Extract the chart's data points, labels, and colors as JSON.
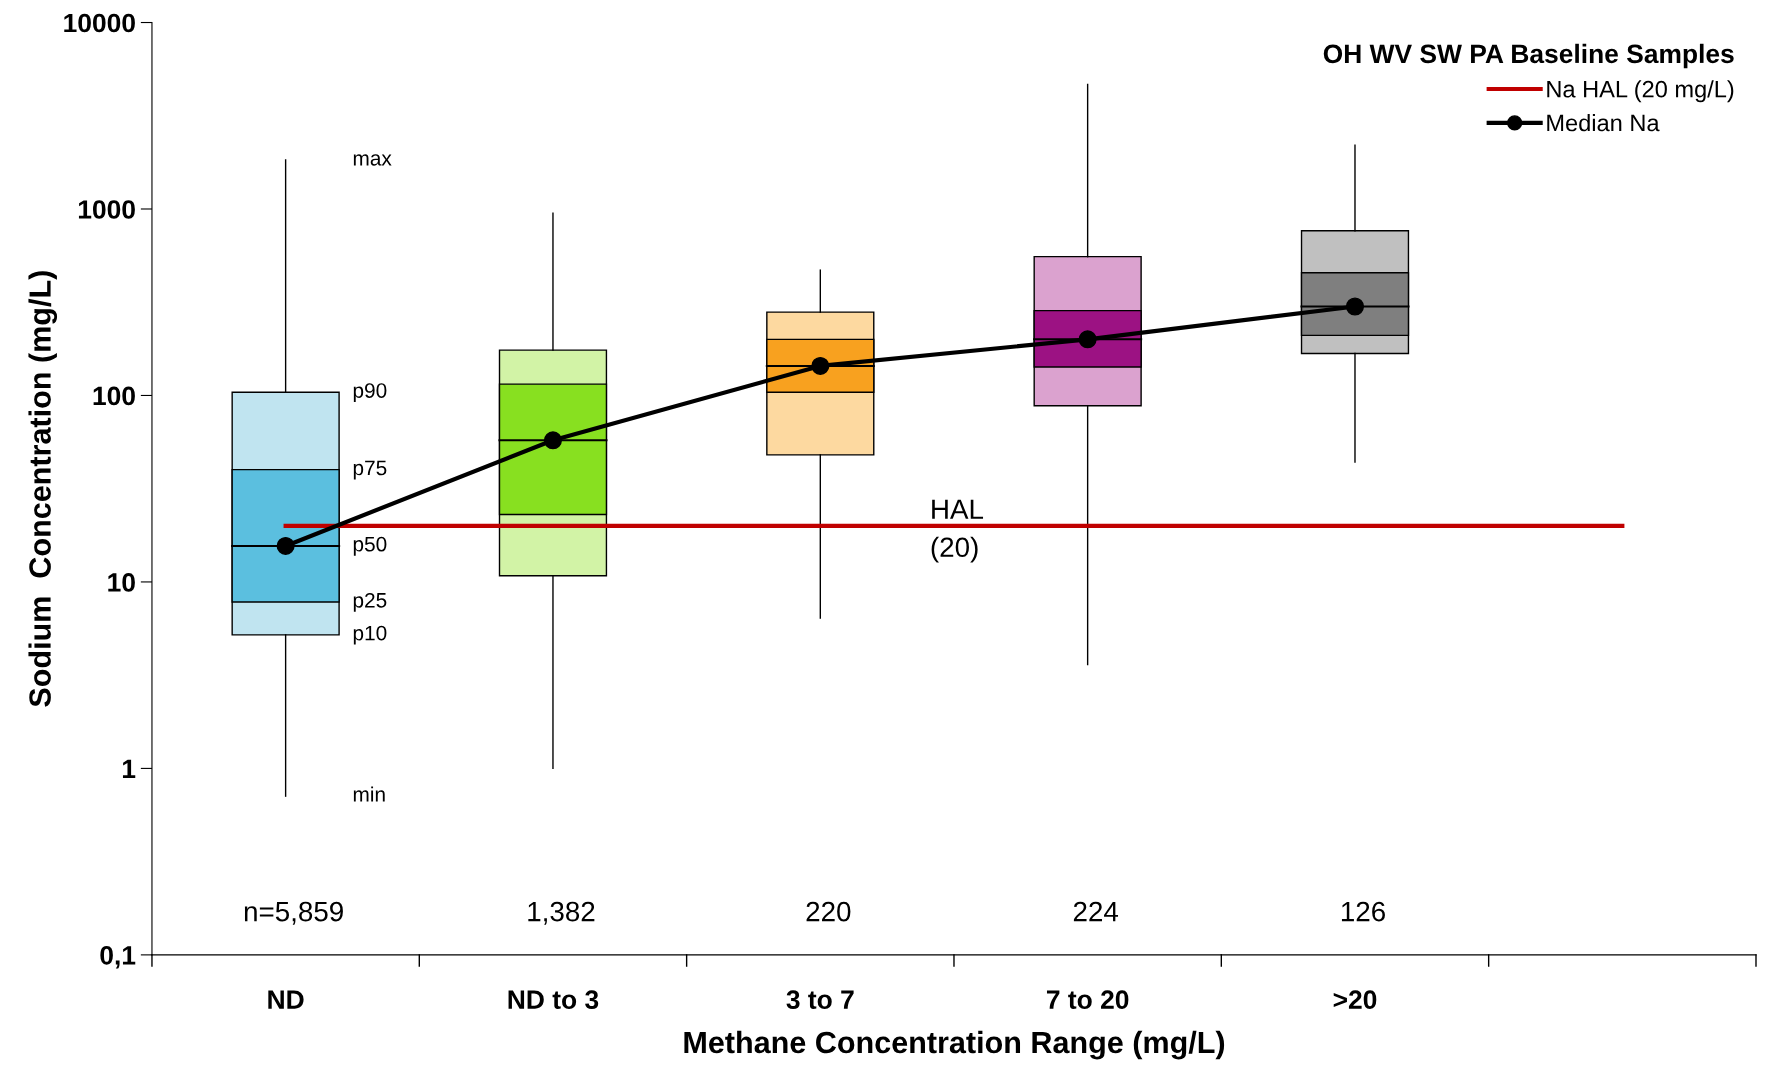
{
  "chart_data": {
    "type": "box",
    "xlabel": "Methane Concentration Range (mg/L)",
    "ylabel": "Sodium  Concentration (mg/L)",
    "legend_title": "OH WV SW PA Baseline Samples",
    "legend": "top right",
    "log": "y",
    "grid": false,
    "categories": [
      "ND",
      "ND to 3",
      "3 to 7",
      "7 to 20",
      ">20",
      null
    ],
    "ylim": [
      0.1,
      10000
    ],
    "yticks": [
      {
        "value": 0.1,
        "label": "0,1"
      },
      1,
      10,
      100,
      1000,
      10000
    ],
    "series": [
      {
        "colors": [
          "#c0e4f0",
          "#d2f3a6",
          "#fdd9a0",
          "#dba2cf",
          "#c0c0c0",
          null
        ],
        "boxes": [
          {
            "low": 0.71,
            "q1": 5.2,
            "median": 15.6,
            "q3": 104,
            "high": 1830
          },
          {
            "low": 1,
            "q1": 10.8,
            "median": 57.5,
            "q3": 175,
            "high": 950
          },
          {
            "low": 6.4,
            "q1": 48,
            "median": 144,
            "q3": 280,
            "high": 470
          },
          {
            "low": 3.6,
            "q1": 88,
            "median": 200,
            "q3": 555,
            "high": 4650
          },
          {
            "low": 44,
            "q1": 168,
            "median": 300,
            "q3": 765,
            "high": 2200
          },
          null
        ]
      },
      {
        "type": "bar",
        "colors": [
          "#5bbfdf",
          "#88e020",
          "#f8a11f",
          "#9c1283",
          "#7f7f7f",
          null
        ],
        "base": [
          7.8,
          23,
          104,
          142,
          210,
          null
        ],
        "values": [
          32.2,
          92,
          96,
          143,
          245,
          null
        ]
      },
      {
        "type": "line",
        "name": "Na HAL (20 mg/L)",
        "color": "#c00000",
        "marker": "none",
        "values": [
          20,
          20,
          20,
          20,
          20,
          20
        ]
      },
      {
        "type": "line",
        "name": "Median Na",
        "color": "#000000",
        "marker": "circle",
        "values": [
          15.6,
          57.5,
          144,
          200,
          300,
          null
        ]
      }
    ],
    "annotations": [
      "max",
      "p90",
      "p75",
      "p50",
      "p25",
      "p10",
      "min",
      "n=5,859",
      "1,382",
      "220",
      "224",
      "126",
      "HAL\n(20)"
    ]
  }
}
